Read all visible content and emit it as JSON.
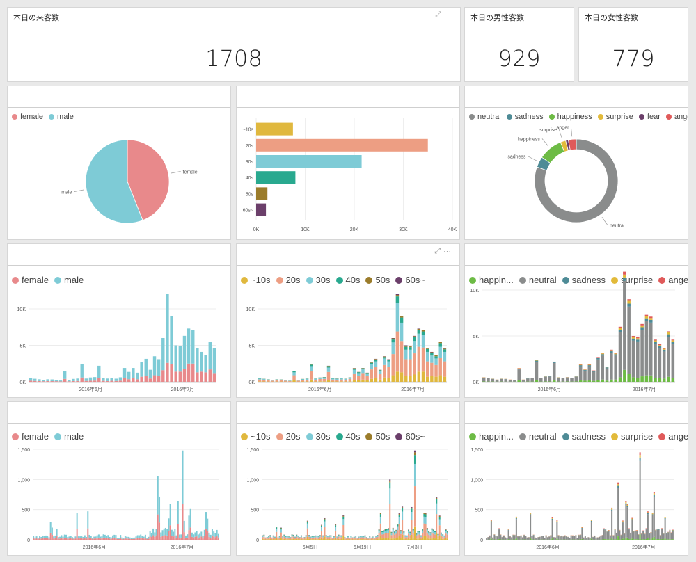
{
  "kpis": [
    {
      "title": "本日の来客数",
      "value": "1708"
    },
    {
      "title": "本日の男性客数",
      "value": "929"
    },
    {
      "title": "本日の女性客数",
      "value": "779"
    }
  ],
  "colors": {
    "female": "#e8898b",
    "male": "#7ecbd6",
    "~10s": "#e0b83e",
    "20s": "#ed9e83",
    "30s": "#7ecbd6",
    "40s": "#29a98f",
    "50s": "#9b7c2b",
    "60s~": "#6b3f6a",
    "happiness": "#6dbb45",
    "neutral": "#8a8c8c",
    "sadness": "#4e8b96",
    "surprise": "#e2ba3a",
    "fear": "#6b3f6a",
    "anger": "#e05a5a"
  },
  "legends": {
    "gender": [
      "female",
      "male"
    ],
    "age": [
      "~10s",
      "20s",
      "30s",
      "40s",
      "50s",
      "60s~"
    ],
    "emotion_full": [
      "neutral",
      "sadness",
      "happiness",
      "surprise",
      "fear",
      "anger"
    ],
    "emotion_trend": [
      "happin...",
      "neutral",
      "sadness",
      "surprise",
      "anger"
    ]
  },
  "chart_data": [
    {
      "id": "gender_pie",
      "type": "pie",
      "series": [
        {
          "name": "female",
          "value": 44
        },
        {
          "name": "male",
          "value": 56
        }
      ]
    },
    {
      "id": "age_bar",
      "type": "bar",
      "categories": [
        "~10s",
        "20s",
        "30s",
        "40s",
        "50s",
        "60s~"
      ],
      "values": [
        7500,
        35000,
        21500,
        8000,
        2300,
        2000
      ],
      "xlim": [
        0,
        40000
      ],
      "xticks": [
        "0K",
        "10K",
        "20K",
        "30K",
        "40K"
      ]
    },
    {
      "id": "emotion_donut",
      "type": "pie",
      "series": [
        {
          "name": "neutral",
          "value": 78
        },
        {
          "name": "sadness",
          "value": 4
        },
        {
          "name": "happiness",
          "value": 9
        },
        {
          "name": "surprise",
          "value": 2
        },
        {
          "name": "fear",
          "value": 1
        },
        {
          "name": "anger",
          "value": 3
        }
      ]
    },
    {
      "id": "gender_daily",
      "type": "bar",
      "stacked": true,
      "ylim": [
        0,
        12000
      ],
      "yticks": [
        "0K",
        "5K",
        "10K"
      ],
      "xticks": [
        "2016年6月",
        "2016年7月"
      ],
      "female": [
        150,
        120,
        100,
        80,
        100,
        90,
        80,
        60,
        400,
        70,
        100,
        120,
        600,
        120,
        150,
        170,
        500,
        130,
        100,
        140,
        110,
        160,
        500,
        360,
        500,
        350,
        700,
        850,
        450,
        900,
        800,
        1600,
        2600,
        2400,
        1400,
        1400,
        1800,
        2500,
        2500,
        1300,
        1400,
        1300,
        1700,
        1200
      ],
      "male": [
        350,
        300,
        250,
        170,
        250,
        240,
        170,
        120,
        1100,
        180,
        300,
        330,
        1800,
        330,
        450,
        480,
        1700,
        370,
        350,
        380,
        320,
        460,
        1400,
        1000,
        1400,
        900,
        2000,
        2300,
        1200,
        2600,
        2300,
        4400,
        9400,
        6600,
        3600,
        3500,
        4500,
        4800,
        4600,
        3300,
        2700,
        2400,
        3800,
        3400
      ]
    },
    {
      "id": "age_daily",
      "type": "bar",
      "stacked": true,
      "ylim": [
        0,
        12000
      ],
      "yticks": [
        "0K",
        "5K",
        "10K"
      ],
      "xticks": [
        "2016年6月",
        "2016年7月"
      ],
      "series": [
        {
          "name": "~10s",
          "values": [
            60,
            50,
            40,
            30,
            40,
            40,
            30,
            20,
            200,
            30,
            50,
            50,
            300,
            50,
            70,
            70,
            250,
            50,
            50,
            60,
            50,
            70,
            250,
            200,
            300,
            200,
            400,
            500,
            300,
            600,
            500,
            900,
            1400,
            1300,
            800,
            800,
            1000,
            1400,
            1400,
            700,
            800,
            700,
            900,
            700
          ]
        },
        {
          "name": "20s",
          "values": [
            260,
            220,
            180,
            130,
            180,
            170,
            120,
            90,
            700,
            130,
            200,
            230,
            1200,
            230,
            310,
            330,
            1100,
            260,
            230,
            260,
            220,
            320,
            900,
            640,
            900,
            600,
            1300,
            1500,
            800,
            1700,
            1500,
            2900,
            5500,
            4300,
            2300,
            2300,
            2900,
            3400,
            3300,
            2100,
            1800,
            1600,
            2400,
            2100
          ]
        },
        {
          "name": "30s",
          "values": [
            120,
            100,
            90,
            60,
            90,
            80,
            60,
            45,
            400,
            60,
            100,
            120,
            650,
            120,
            160,
            170,
            600,
            130,
            110,
            130,
            110,
            160,
            500,
            360,
            500,
            350,
            700,
            800,
            400,
            900,
            800,
            1600,
            3900,
            2500,
            1300,
            1300,
            1700,
            1800,
            1700,
            1300,
            1000,
            900,
            1500,
            1300
          ]
        },
        {
          "name": "40s",
          "values": [
            40,
            35,
            30,
            20,
            30,
            30,
            20,
            15,
            150,
            20,
            35,
            40,
            200,
            40,
            50,
            60,
            200,
            45,
            40,
            50,
            35,
            50,
            180,
            120,
            150,
            70,
            200,
            250,
            100,
            200,
            200,
            400,
            900,
            700,
            400,
            350,
            500,
            500,
            500,
            400,
            350,
            300,
            500,
            350
          ]
        },
        {
          "name": "50s",
          "values": [
            15,
            10,
            8,
            8,
            8,
            8,
            8,
            8,
            40,
            8,
            12,
            8,
            40,
            8,
            8,
            15,
            40,
            12,
            15,
            15,
            12,
            15,
            50,
            30,
            40,
            20,
            60,
            70,
            35,
            70,
            70,
            150,
            200,
            150,
            120,
            100,
            150,
            150,
            150,
            80,
            100,
            150,
            150,
            100
          ]
        },
        {
          "name": "60s~",
          "values": [
            5,
            5,
            2,
            2,
            2,
            2,
            2,
            2,
            10,
            2,
            3,
            2,
            10,
            2,
            2,
            5,
            10,
            3,
            5,
            5,
            3,
            5,
            20,
            10,
            10,
            10,
            40,
            30,
            15,
            30,
            30,
            50,
            100,
            50,
            80,
            50,
            50,
            50,
            50,
            20,
            50,
            50,
            50,
            50
          ]
        }
      ]
    },
    {
      "id": "emotion_daily",
      "type": "bar",
      "stacked": true,
      "ylim": [
        0,
        10000
      ],
      "yticks": [
        "0K",
        "5K",
        "10K"
      ],
      "xticks": [
        "2016年6月",
        "2016年7月"
      ],
      "series": [
        {
          "name": "happiness",
          "values": [
            40,
            30,
            30,
            20,
            30,
            20,
            20,
            20,
            150,
            20,
            30,
            30,
            200,
            30,
            40,
            40,
            150,
            30,
            30,
            40,
            30,
            40,
            150,
            120,
            150,
            100,
            200,
            250,
            130,
            250,
            250,
            500,
            1300,
            900,
            500,
            450,
            600,
            700,
            700,
            450,
            400,
            350,
            550,
            450
          ]
        },
        {
          "name": "neutral",
          "values": [
            400,
            350,
            280,
            200,
            280,
            270,
            190,
            130,
            1200,
            200,
            320,
            370,
            2000,
            370,
            500,
            540,
            1900,
            420,
            380,
            420,
            360,
            520,
            1550,
            1100,
            1550,
            1000,
            2250,
            2600,
            1350,
            2900,
            2600,
            4900,
            9700,
            7300,
            4000,
            3950,
            5050,
            5900,
            5750,
            3700,
            3250,
            2950,
            4350,
            3700
          ]
        },
        {
          "name": "sadness",
          "values": [
            30,
            20,
            20,
            15,
            20,
            20,
            15,
            15,
            80,
            15,
            25,
            25,
            110,
            25,
            35,
            40,
            90,
            25,
            20,
            25,
            20,
            30,
            110,
            80,
            110,
            70,
            130,
            160,
            100,
            180,
            150,
            280,
            380,
            320,
            220,
            200,
            300,
            320,
            300,
            200,
            220,
            200,
            280,
            220
          ]
        },
        {
          "name": "surprise",
          "values": [
            20,
            15,
            15,
            10,
            15,
            15,
            15,
            10,
            40,
            10,
            20,
            20,
            60,
            20,
            20,
            20,
            50,
            20,
            15,
            20,
            15,
            20,
            50,
            40,
            50,
            50,
            70,
            80,
            50,
            110,
            70,
            200,
            300,
            300,
            180,
            150,
            200,
            200,
            200,
            150,
            130,
            100,
            200,
            150
          ]
        },
        {
          "name": "anger",
          "values": [
            10,
            5,
            5,
            5,
            5,
            5,
            10,
            5,
            30,
            5,
            5,
            5,
            30,
            5,
            5,
            10,
            10,
            5,
            5,
            15,
            5,
            10,
            40,
            20,
            40,
            30,
            50,
            60,
            20,
            60,
            30,
            120,
            320,
            180,
            100,
            150,
            150,
            180,
            150,
            100,
            100,
            100,
            120,
            80
          ]
        }
      ]
    },
    {
      "id": "gender_hourly",
      "type": "bar",
      "stacked": true,
      "ylim": [
        0,
        1500
      ],
      "yticks": [
        "0",
        "500",
        "1,000",
        "1,500"
      ],
      "xticks": [
        "2016年6月",
        "2016年7月"
      ]
    },
    {
      "id": "age_hourly",
      "type": "bar",
      "stacked": true,
      "ylim": [
        0,
        1500
      ],
      "yticks": [
        "0",
        "500",
        "1,000",
        "1,500"
      ],
      "xticks": [
        "6月5日",
        "6月19日",
        "7月3日"
      ]
    },
    {
      "id": "emotion_hourly",
      "type": "bar",
      "stacked": true,
      "ylim": [
        0,
        1500
      ],
      "yticks": [
        "0",
        "500",
        "1,000",
        "1,500"
      ],
      "xticks": [
        "2016年6月",
        "2016年7月"
      ]
    }
  ]
}
